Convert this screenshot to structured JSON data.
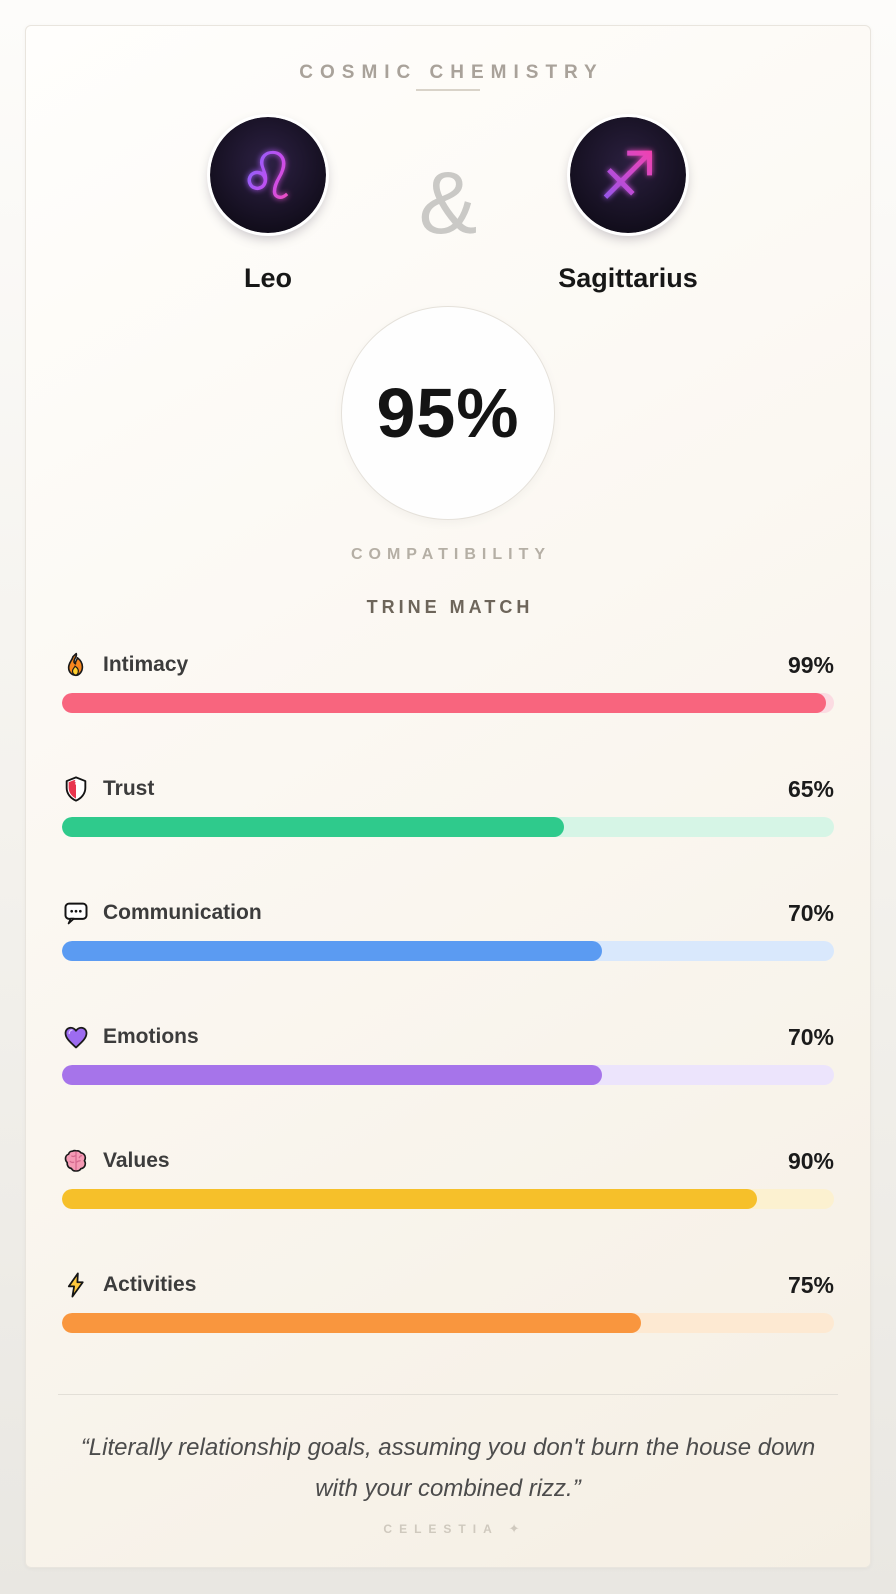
{
  "header": {
    "title": "COSMIC CHEMISTRY"
  },
  "pair": {
    "left": {
      "name": "Leo",
      "symbol": "♌"
    },
    "separator": "&",
    "right": {
      "name": "Sagittarius",
      "symbol": "♐"
    }
  },
  "score": {
    "value": "95%",
    "caption": "COMPATIBILITY",
    "match_type": "TRINE MATCH"
  },
  "stats": [
    {
      "label": "Intimacy",
      "value": 99,
      "display": "99%",
      "icon": "fire-icon",
      "fill": "#f8657e",
      "track": "#fbdbe2"
    },
    {
      "label": "Trust",
      "value": 65,
      "display": "65%",
      "icon": "shield-icon",
      "fill": "#2fca8c",
      "track": "#d6f5e6"
    },
    {
      "label": "Communication",
      "value": 70,
      "display": "70%",
      "icon": "speech-bubble-icon",
      "fill": "#5b9bf2",
      "track": "#d9e8fc"
    },
    {
      "label": "Emotions",
      "value": 70,
      "display": "70%",
      "icon": "heart-icon",
      "fill": "#a674ea",
      "track": "#ece4fc"
    },
    {
      "label": "Values",
      "value": 90,
      "display": "90%",
      "icon": "brain-icon",
      "fill": "#f6c02a",
      "track": "#fcf1d0"
    },
    {
      "label": "Activities",
      "value": 75,
      "display": "75%",
      "icon": "lightning-icon",
      "fill": "#f9963e",
      "track": "#fde9d2"
    }
  ],
  "quote": "“Literally relationship goals, assuming you don't burn the house down with your combined rizz.”",
  "footer": {
    "brand": "CELESTIA",
    "sparkle": "✦"
  }
}
